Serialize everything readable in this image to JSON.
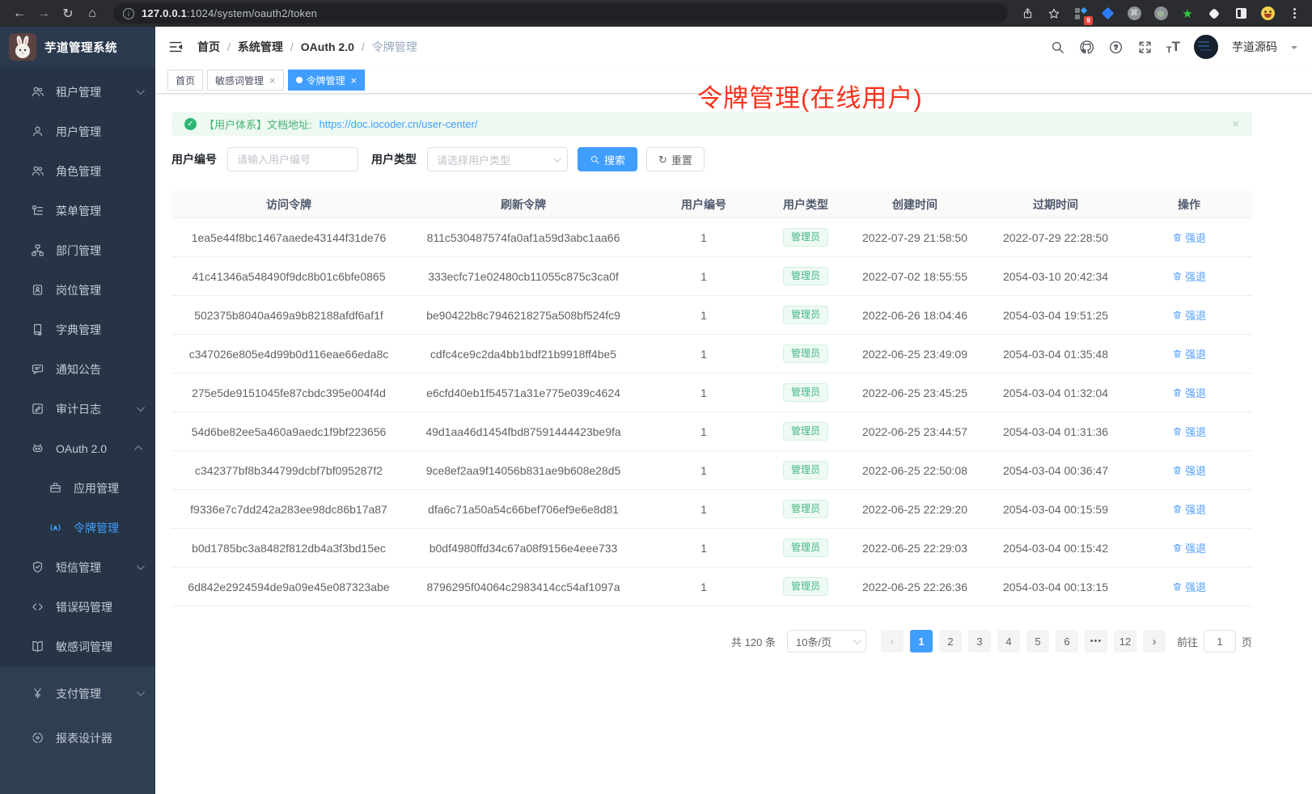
{
  "colors": {
    "accent": "#409eff",
    "success": "#43b784",
    "annotation_red": "#f7321b",
    "sidebar_bg": "#263445",
    "tag_active_bg": "#409eff"
  },
  "browser": {
    "url_host": "127.0.0.1",
    "url_path": ":1024/system/oauth2/token",
    "extension_badge": "9",
    "icons": [
      "back",
      "forward",
      "reload",
      "home",
      "site-info",
      "share",
      "bookmark-star",
      "extensions",
      "gem",
      "command-circle",
      "record-circle",
      "green-star",
      "white-shape",
      "side-panel",
      "emoji",
      "kebab-menu"
    ]
  },
  "app_title": "芋道管理系统",
  "header": {
    "breadcrumb": [
      "首页",
      "系统管理",
      "OAuth 2.0",
      "令牌管理"
    ],
    "icons": [
      "search",
      "github",
      "help",
      "fullscreen",
      "font-size"
    ],
    "user_name": "芋道源码"
  },
  "annotation": {
    "text": "令牌管理(在线用户)"
  },
  "sidebar": {
    "items": [
      {
        "key": "tenant",
        "label": "租户管理",
        "icon": "users",
        "arrow": "down"
      },
      {
        "key": "user",
        "label": "用户管理",
        "icon": "user"
      },
      {
        "key": "role",
        "label": "角色管理",
        "icon": "users"
      },
      {
        "key": "menu",
        "label": "菜单管理",
        "icon": "menutree"
      },
      {
        "key": "dept",
        "label": "部门管理",
        "icon": "orgtree"
      },
      {
        "key": "post",
        "label": "岗位管理",
        "icon": "badge"
      },
      {
        "key": "dict",
        "label": "字典管理",
        "icon": "dict"
      },
      {
        "key": "notice",
        "label": "通知公告",
        "icon": "message"
      },
      {
        "key": "audit-log",
        "label": "审计日志",
        "icon": "log",
        "arrow": "down"
      },
      {
        "key": "oauth2",
        "label": "OAuth 2.0",
        "icon": "robot",
        "arrow": "up",
        "children": [
          {
            "key": "oauth2-app",
            "label": "应用管理",
            "icon": "briefcase"
          },
          {
            "key": "oauth2-token",
            "label": "令牌管理",
            "icon": "token",
            "active": true
          }
        ]
      },
      {
        "key": "sms",
        "label": "短信管理",
        "icon": "shield",
        "arrow": "down"
      },
      {
        "key": "error-code",
        "label": "错误码管理",
        "icon": "code"
      },
      {
        "key": "sensitive-word",
        "label": "敏感词管理",
        "icon": "bookopen"
      },
      {
        "key": "pay",
        "label": "支付管理",
        "icon": "yen",
        "arrow": "down",
        "section": "light"
      },
      {
        "key": "report-design",
        "label": "报表设计器",
        "icon": "chart",
        "section": "light"
      }
    ]
  },
  "tabs": [
    {
      "key": "home",
      "label": "首页"
    },
    {
      "key": "sensitive-word",
      "label": "敏感词管理",
      "closable": true
    },
    {
      "key": "token",
      "label": "令牌管理",
      "closable": true,
      "active": true
    }
  ],
  "alert": {
    "text": "【用户体系】文档地址:",
    "link": "https://doc.iocoder.cn/user-center/"
  },
  "filters": {
    "user_id_label": "用户编号",
    "user_id_placeholder": "请输入用户编号",
    "user_type_label": "用户类型",
    "user_type_placeholder": "请选择用户类型",
    "search_label": "搜索",
    "reset_label": "重置"
  },
  "table": {
    "columns": [
      "访问令牌",
      "刷新令牌",
      "用户编号",
      "用户类型",
      "创建时间",
      "过期时间",
      "操作"
    ],
    "user_type_tag": "管理员",
    "action_label": "强退",
    "rows": [
      {
        "access": "1ea5e44f8bc1467aaede43144f31de76",
        "refresh": "811c530487574fa0af1a59d3abc1aa66",
        "user_id": "1",
        "created": "2022-07-29 21:58:50",
        "expires": "2022-07-29 22:28:50"
      },
      {
        "access": "41c41346a548490f9dc8b01c6bfe0865",
        "refresh": "333ecfc71e02480cb11055c875c3ca0f",
        "user_id": "1",
        "created": "2022-07-02 18:55:55",
        "expires": "2054-03-10 20:42:34"
      },
      {
        "access": "502375b8040a469a9b82188afdf6af1f",
        "refresh": "be90422b8c7946218275a508bf524fc9",
        "user_id": "1",
        "created": "2022-06-26 18:04:46",
        "expires": "2054-03-04 19:51:25"
      },
      {
        "access": "c347026e805e4d99b0d116eae66eda8c",
        "refresh": "cdfc4ce9c2da4bb1bdf21b9918ff4be5",
        "user_id": "1",
        "created": "2022-06-25 23:49:09",
        "expires": "2054-03-04 01:35:48"
      },
      {
        "access": "275e5de9151045fe87cbdc395e004f4d",
        "refresh": "e6cfd40eb1f54571a31e775e039c4624",
        "user_id": "1",
        "created": "2022-06-25 23:45:25",
        "expires": "2054-03-04 01:32:04"
      },
      {
        "access": "54d6be82ee5a460a9aedc1f9bf223656",
        "refresh": "49d1aa46d1454fbd87591444423be9fa",
        "user_id": "1",
        "created": "2022-06-25 23:44:57",
        "expires": "2054-03-04 01:31:36"
      },
      {
        "access": "c342377bf8b344799dcbf7bf095287f2",
        "refresh": "9ce8ef2aa9f14056b831ae9b608e28d5",
        "user_id": "1",
        "created": "2022-06-25 22:50:08",
        "expires": "2054-03-04 00:36:47"
      },
      {
        "access": "f9336e7c7dd242a283ee98dc86b17a87",
        "refresh": "dfa6c71a50a54c66bef706ef9e6e8d81",
        "user_id": "1",
        "created": "2022-06-25 22:29:20",
        "expires": "2054-03-04 00:15:59"
      },
      {
        "access": "b0d1785bc3a8482f812db4a3f3bd15ec",
        "refresh": "b0df4980ffd34c67a08f9156e4eee733",
        "user_id": "1",
        "created": "2022-06-25 22:29:03",
        "expires": "2054-03-04 00:15:42"
      },
      {
        "access": "6d842e2924594de9a09e45e087323abe",
        "refresh": "8796295f04064c2983414cc54af1097a",
        "user_id": "1",
        "created": "2022-06-25 22:26:36",
        "expires": "2054-03-04 00:13:15"
      }
    ]
  },
  "pagination": {
    "total": "共 120 条",
    "page_size": "10条/页",
    "prev": "‹",
    "next": "›",
    "pages": [
      "1",
      "2",
      "3",
      "4",
      "5",
      "6",
      "•••",
      "12"
    ],
    "active_page": "1",
    "goto_label": "前往",
    "goto_value": "1",
    "goto_suffix": "页"
  }
}
